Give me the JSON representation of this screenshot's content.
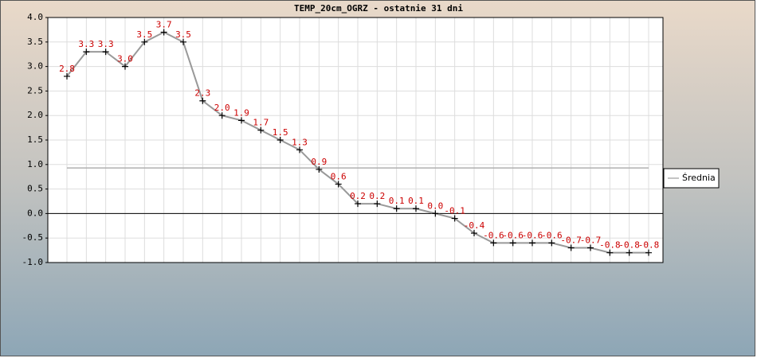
{
  "chart_data": {
    "type": "line",
    "title": "TEMP_20cm_OGRZ - ostatnie 31 dni",
    "values": [
      2.8,
      3.3,
      3.3,
      3.0,
      3.5,
      3.7,
      3.5,
      2.3,
      2.0,
      1.9,
      1.7,
      1.5,
      1.3,
      0.9,
      0.6,
      0.2,
      0.2,
      0.1,
      0.1,
      0.0,
      -0.1,
      -0.4,
      -0.6,
      -0.6,
      -0.6,
      -0.6,
      -0.7,
      -0.7,
      -0.8,
      -0.8,
      -0.8
    ],
    "value_labels": [
      "2.8",
      "3.3",
      "3.3",
      "3.0",
      "3.5",
      "3.7",
      "3.5",
      "2.3",
      "2.0",
      "1.9",
      "1.7",
      "1.5",
      "1.3",
      "0.9",
      "0.6",
      "0.2",
      "0.2",
      "0.1",
      "0.1",
      "0.0",
      "-0.1",
      "-0.4",
      "-0.6",
      "-0.6",
      "-0.6",
      "-0.6",
      "-0.7",
      "-0.7",
      "-0.8",
      "-0.8",
      "-0.8"
    ],
    "color": "#999999",
    "label_color": "#cc0000",
    "reference_line": {
      "name": "Średnia",
      "value": 0.93,
      "color": "#b0b0b0"
    },
    "ylim": [
      -1.0,
      4.0
    ],
    "yticks": [
      {
        "value": -1.0,
        "label": "-1.0"
      },
      {
        "value": -0.5,
        "label": "-0.5"
      },
      {
        "value": 0.0,
        "label": "0.0"
      },
      {
        "value": 0.5,
        "label": "0.5"
      },
      {
        "value": 1.0,
        "label": "1.0"
      },
      {
        "value": 1.5,
        "label": "1.5"
      },
      {
        "value": 2.0,
        "label": "2.0"
      },
      {
        "value": 2.5,
        "label": "2.5"
      },
      {
        "value": 3.0,
        "label": "3.0"
      },
      {
        "value": 3.5,
        "label": "3.5"
      },
      {
        "value": 4.0,
        "label": "4.0"
      }
    ],
    "grid": true
  }
}
